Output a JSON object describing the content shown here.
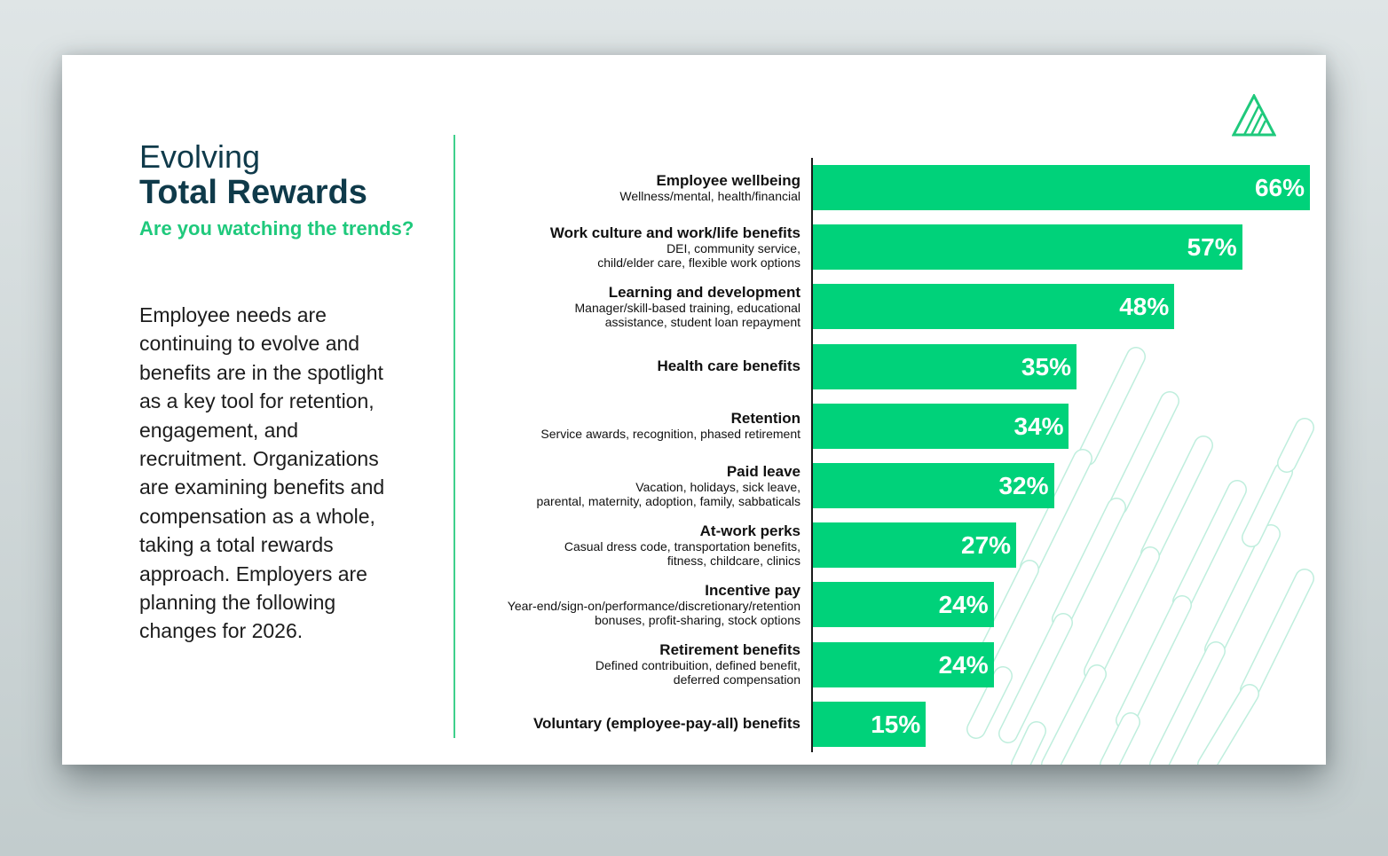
{
  "title": {
    "line1": "Evolving",
    "line2": "Total Rewards",
    "subtitle": "Are you watching the trends?"
  },
  "body_text": "Employee needs are continuing to evolve and benefits are in the spotlight as a key tool for retention, engagement, and recruitment. Organizations are examining benefits and compensation as a whole, taking a total rewards approach. Employers are planning the following changes for 2026.",
  "colors": {
    "bar": "#00d27a",
    "title": "#0f3a4a",
    "accent": "#1fc97c",
    "deco": "#bfeedd"
  },
  "chart_data": {
    "type": "bar",
    "orientation": "horizontal",
    "title": "",
    "xlabel": "",
    "ylabel": "",
    "xlim": [
      0,
      66
    ],
    "categories": [
      "Employee wellbeing",
      "Work culture and work/life benefits",
      "Learning and development",
      "Health care benefits",
      "Retention",
      "Paid leave",
      "At-work perks",
      "Incentive pay",
      "Retirement benefits",
      "Voluntary (employee-pay-all) benefits"
    ],
    "descriptions": [
      [
        "Wellness/mental, health/financial"
      ],
      [
        "DEI, community service,",
        "child/elder care, flexible work options"
      ],
      [
        "Manager/skill-based training, educational",
        "assistance, student loan repayment"
      ],
      [],
      [
        "Service awards, recognition, phased retirement"
      ],
      [
        "Vacation, holidays, sick leave,",
        "parental, maternity, adoption, family, sabbaticals"
      ],
      [
        "Casual dress code, transportation benefits,",
        "fitness, childcare, clinics"
      ],
      [
        "Year-end/sign-on/performance/discretionary/retention",
        "bonuses, profit-sharing, stock options"
      ],
      [
        "Defined contribuition, defined benefit,",
        "deferred compensation"
      ],
      []
    ],
    "values": [
      66,
      57,
      48,
      35,
      34,
      32,
      27,
      24,
      24,
      15
    ],
    "value_labels": [
      "66%",
      "57%",
      "48%",
      "35%",
      "34%",
      "32%",
      "27%",
      "24%",
      "24%",
      "15%"
    ]
  }
}
